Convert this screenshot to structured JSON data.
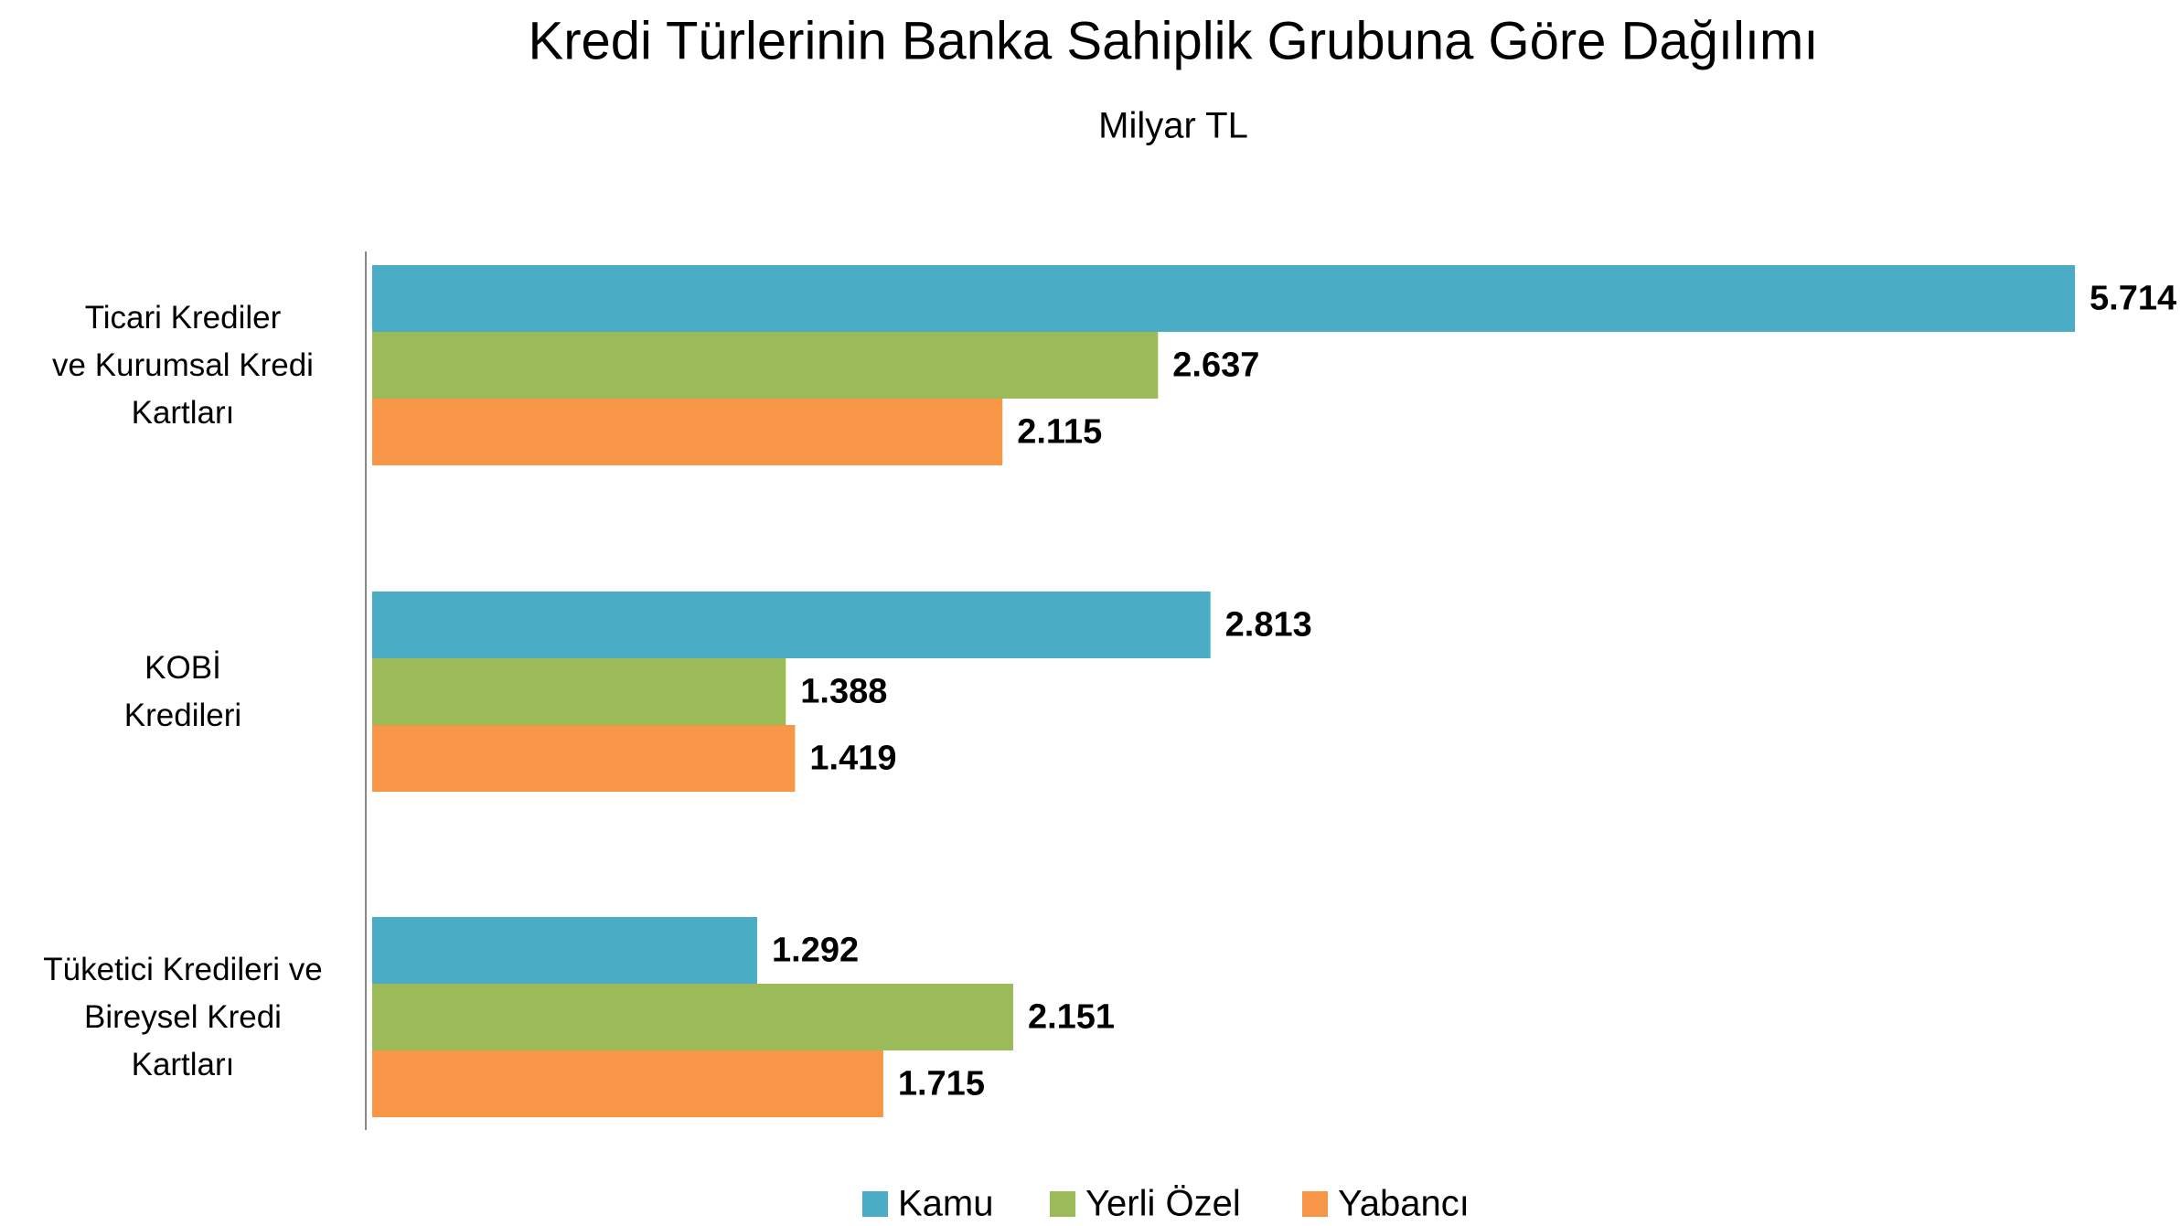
{
  "chart_data": {
    "type": "bar",
    "orientation": "horizontal",
    "title": "Kredi Türlerinin Banka Sahiplik Grubuna Göre Dağılımı",
    "subtitle": "Milyar TL",
    "categories": [
      "Ticari Krediler\nve Kurumsal Kredi\nKartları",
      "KOBİ\nKredileri",
      "Tüketici Kredileri ve\nBireysel Kredi\nKartları"
    ],
    "series": [
      {
        "name": "Kamu",
        "color": "#4bacc6",
        "values": [
          5714,
          2813,
          1292
        ],
        "value_labels": [
          "5.714",
          "2.813",
          "1.292"
        ]
      },
      {
        "name": "Yerli Özel",
        "color": "#9bbb59",
        "values": [
          2637,
          1388,
          2151
        ],
        "value_labels": [
          "2.637",
          "1.388",
          "2.151"
        ]
      },
      {
        "name": "Yabancı",
        "color": "#f79646",
        "values": [
          2115,
          1419,
          1715
        ],
        "value_labels": [
          "2.115",
          "1.419",
          "1.715"
        ]
      }
    ],
    "legend": "bottom"
  }
}
